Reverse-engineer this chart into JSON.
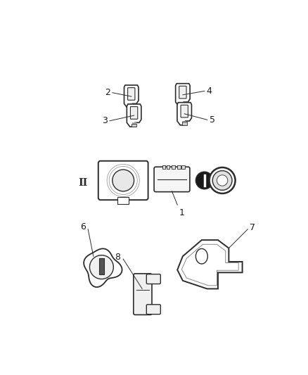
{
  "background_color": "#ffffff",
  "line_color": "#2c2c2c",
  "text_color": "#1a1a1a",
  "figure_width": 4.38,
  "figure_height": 5.33,
  "dpi": 100
}
